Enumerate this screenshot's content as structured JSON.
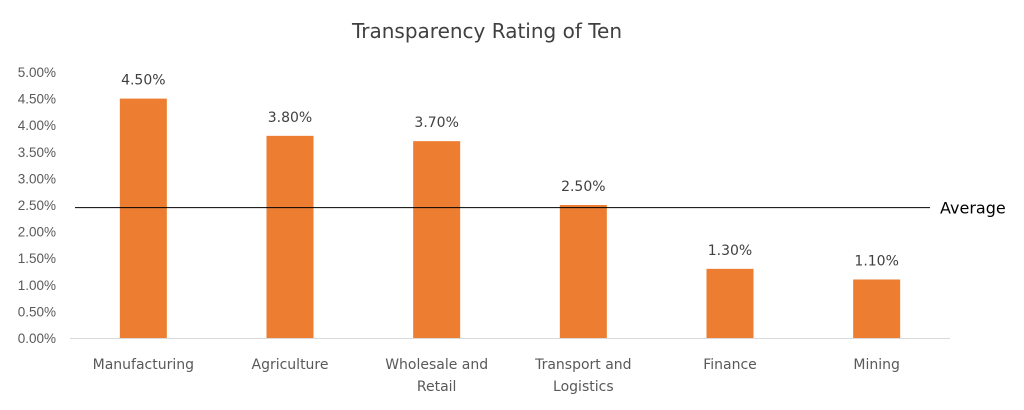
{
  "chart_data": {
    "type": "bar",
    "title": "Transparency Rating of Ten",
    "categories": [
      [
        "Manufacturing"
      ],
      [
        "Agriculture"
      ],
      [
        "Wholesale and",
        "Retail"
      ],
      [
        "Transport and",
        "Logistics"
      ],
      [
        "Finance"
      ],
      [
        "Mining"
      ]
    ],
    "values": [
      4.5,
      3.8,
      3.7,
      2.5,
      1.3,
      1.1
    ],
    "data_labels": [
      "4.50%",
      "3.80%",
      "3.70%",
      "2.50%",
      "1.30%",
      "1.10%"
    ],
    "ylim": [
      0,
      5
    ],
    "yticks": [
      "0.00%",
      "0.50%",
      "1.00%",
      "1.50%",
      "2.00%",
      "2.50%",
      "3.00%",
      "3.50%",
      "4.00%",
      "4.50%",
      "5.00%"
    ],
    "average": {
      "label": "Average",
      "value": 2.45
    },
    "grid": false,
    "bar_color": "#ED7D31",
    "avg_line_color": "#000000"
  }
}
